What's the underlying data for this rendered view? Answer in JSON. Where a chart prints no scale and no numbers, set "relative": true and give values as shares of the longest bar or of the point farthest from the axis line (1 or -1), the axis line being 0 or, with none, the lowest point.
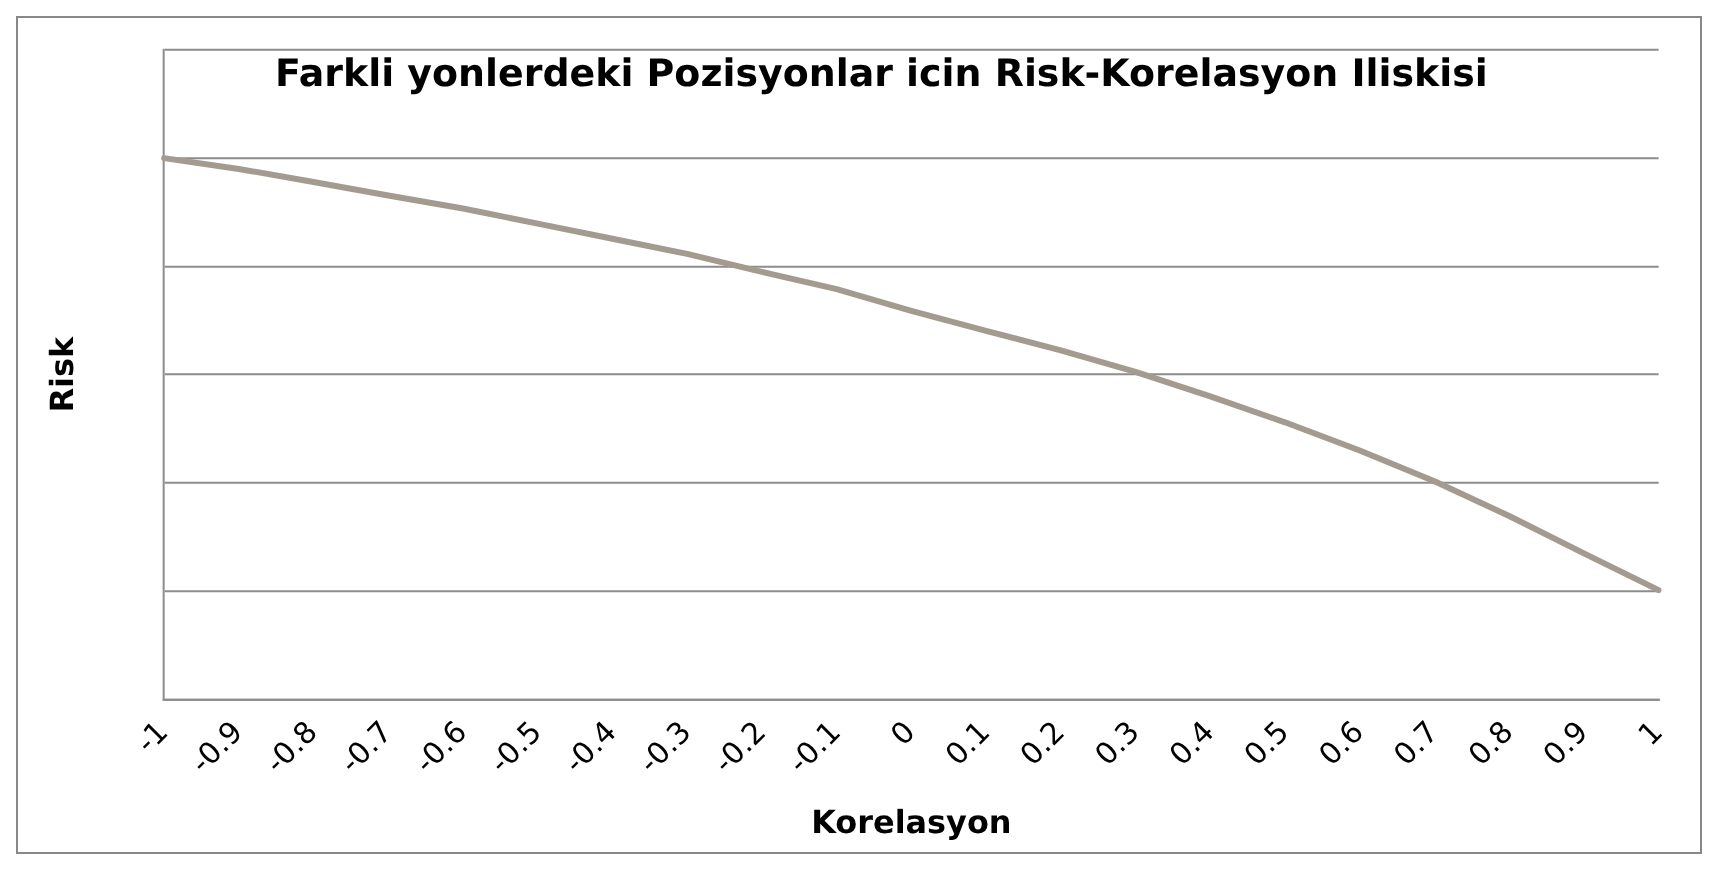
{
  "chart_data": {
    "type": "line",
    "title": "Farkli yonlerdeki Pozisyonlar icin Risk-Korelasyon Iliskisi",
    "xlabel": "Korelasyon",
    "ylabel": "Risk",
    "categories": [
      "-1",
      "-0.9",
      "-0.8",
      "-0.7",
      "-0.6",
      "-0.5",
      "-0.4",
      "-0.3",
      "-0.2",
      "-0.1",
      "0",
      "0.1",
      "0.2",
      "0.3",
      "0.4",
      "0.5",
      "0.6",
      "0.7",
      "0.8",
      "0.9",
      "1"
    ],
    "relative": true,
    "series": [
      {
        "color": "#a39b8f",
        "values": [
          1,
          0.98,
          0.956,
          0.931,
          0.907,
          0.879,
          0.851,
          0.823,
          0.79,
          0.758,
          0.718,
          0.681,
          0.645,
          0.605,
          0.56,
          0.512,
          0.46,
          0.403,
          0.339,
          0.27,
          0.202
        ]
      }
    ],
    "grid": "y",
    "legend": false,
    "marker": "none",
    "line_style": "solid"
  }
}
